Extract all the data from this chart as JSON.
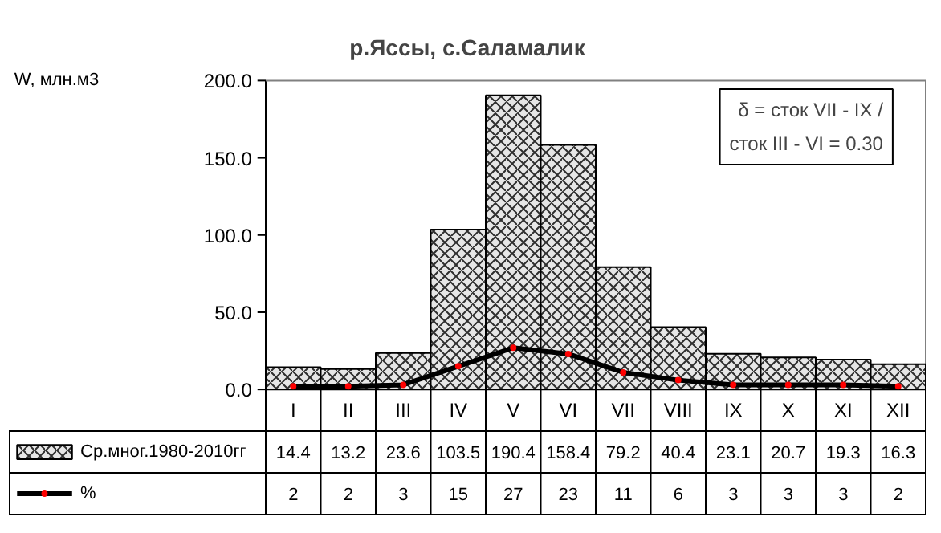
{
  "chart_data": {
    "type": "bar",
    "title": "р.Яссы, с.Саламалик",
    "categories": [
      "I",
      "II",
      "III",
      "IV",
      "V",
      "VI",
      "VII",
      "VIII",
      "IX",
      "X",
      "XI",
      "XII"
    ],
    "series": [
      {
        "name": "Ср.мног.1980-2010гг",
        "color": "#e6e6e6",
        "values": [
          14.4,
          13.2,
          23.6,
          103.5,
          190.4,
          158.4,
          79.2,
          40.4,
          23.1,
          20.7,
          19.3,
          16.3
        ]
      },
      {
        "name": "%",
        "type": "line",
        "color": "#000000",
        "values": [
          2,
          2,
          3,
          15,
          27,
          23,
          11,
          6,
          3,
          3,
          3,
          2
        ]
      }
    ],
    "ylim": [
      0,
      200
    ],
    "yticks": [
      {
        "value": 0,
        "label": "0.0"
      },
      {
        "value": 50,
        "label": "50.0"
      },
      {
        "value": 100,
        "label": "100.0"
      },
      {
        "value": 150,
        "label": "150.0"
      },
      {
        "value": 200,
        "label": "200.0"
      }
    ],
    "annotations": [
      "W, млн.м3",
      "δ = сток VII - IX /\nсток III - VI = 0.30"
    ],
    "data_labels": true,
    "legend": "bottom",
    "grid": false,
    "marker": "circle",
    "line_style": "solid"
  }
}
